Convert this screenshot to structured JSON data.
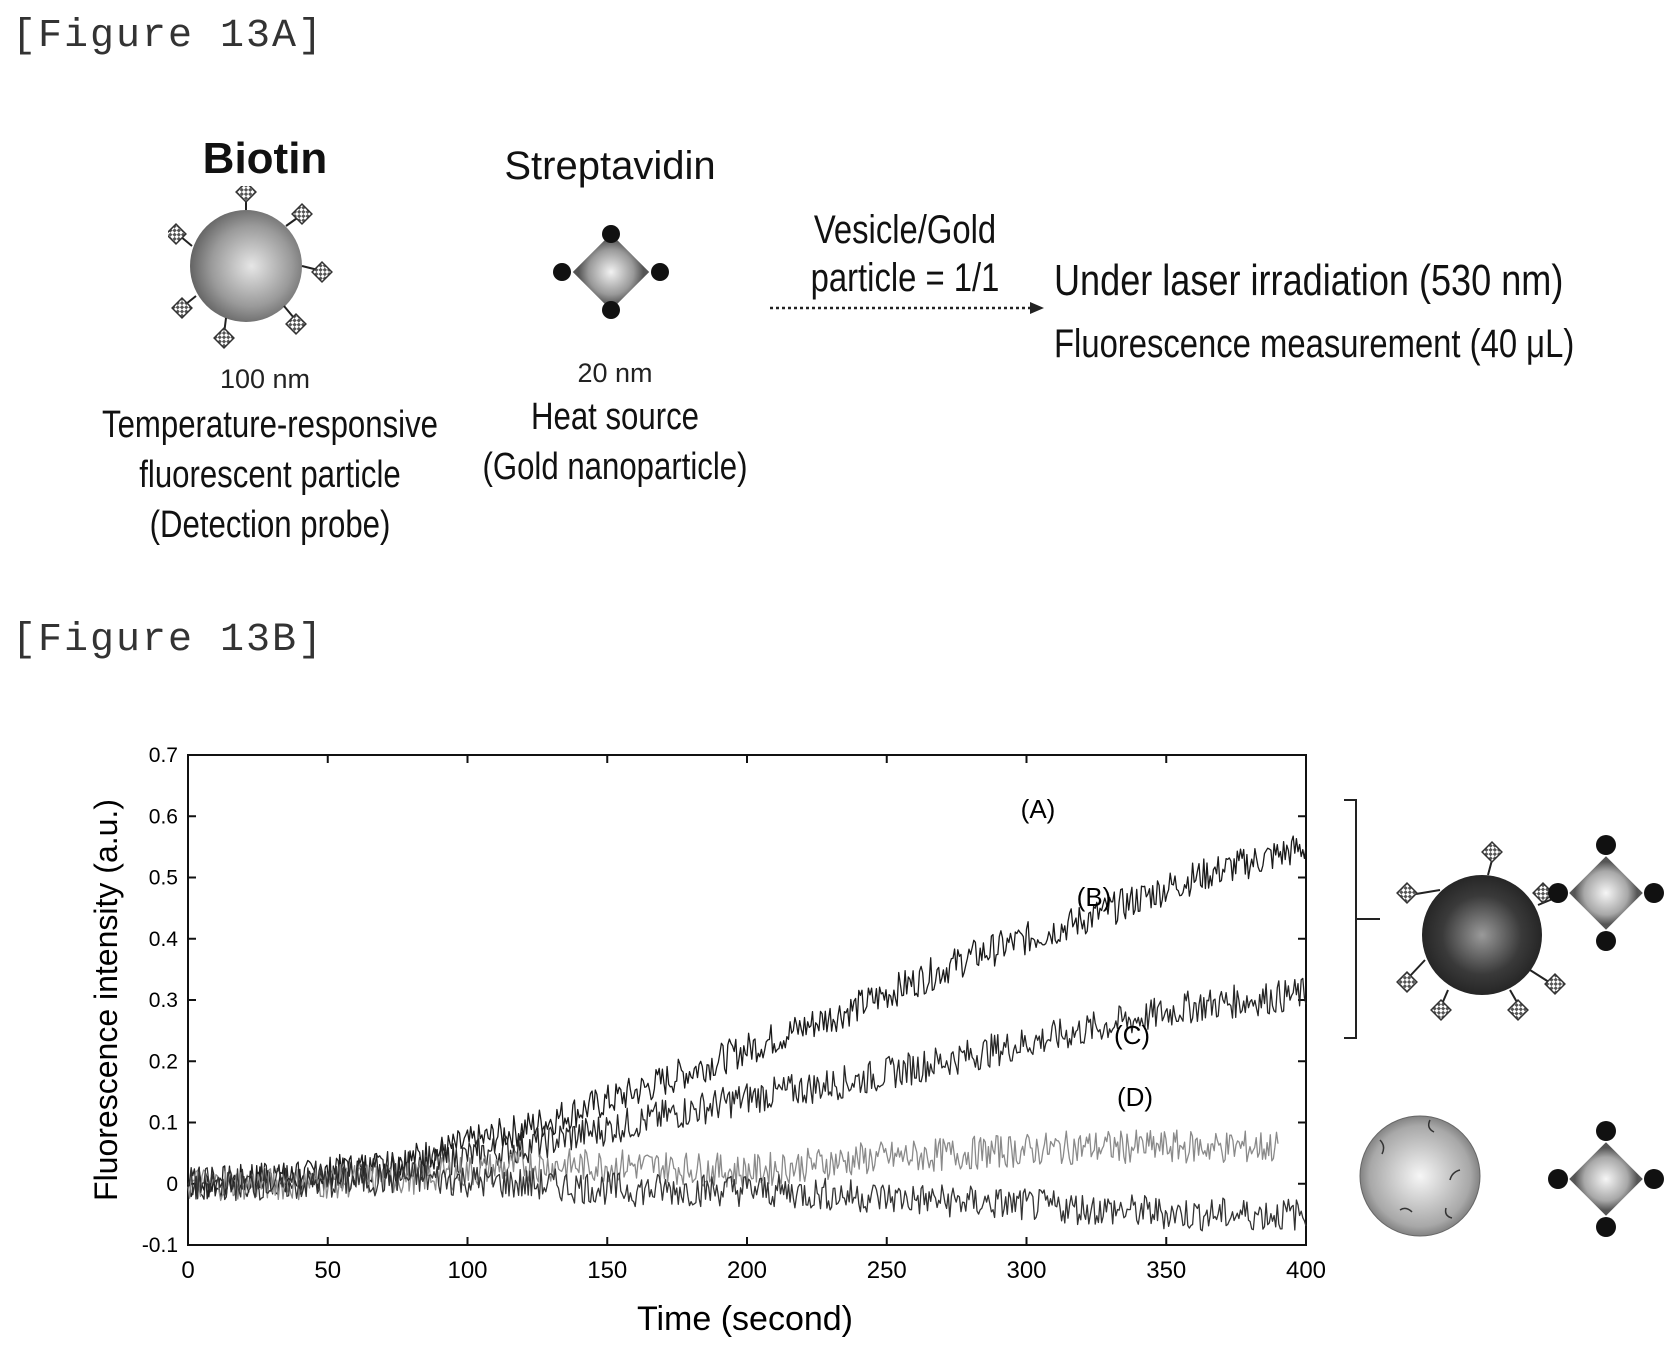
{
  "figure_a": {
    "label": "[Figure 13A]",
    "probe": {
      "ligand": "Biotin",
      "size": "100 nm",
      "desc": [
        "Temperature-responsive",
        "fluorescent particle",
        "(Detection probe)"
      ]
    },
    "heat_source": {
      "ligand": "Streptavidin",
      "size": "20 nm",
      "desc": [
        "Heat source",
        "(Gold nanoparticle)"
      ]
    },
    "ratio": [
      "Vesicle/Gold",
      "particle = 1/1"
    ],
    "conditions": [
      "Under laser irradiation (530 nm)",
      "Fluorescence measurement (40 μL)"
    ]
  },
  "figure_b": {
    "label": "[Figure 13B]"
  },
  "chart_data": {
    "type": "line",
    "xlabel": "Time (second)",
    "ylabel": "Fluorescence intensity (a.u.)",
    "xlim": [
      0,
      400
    ],
    "ylim": [
      -0.1,
      0.7
    ],
    "xticks": [
      "0",
      "50",
      "100",
      "150",
      "200",
      "250",
      "300",
      "350",
      "400"
    ],
    "yticks": [
      "-0.1",
      "0",
      "0.1",
      "0.2",
      "0.3",
      "0.4",
      "0.5",
      "0.6",
      "0.7"
    ],
    "grid": false,
    "series": [
      {
        "name": "(A)",
        "color": "#1a1a1a",
        "x": [
          0,
          40,
          80,
          120,
          160,
          200,
          240,
          280,
          320,
          360,
          400
        ],
        "y": [
          0.0,
          0.01,
          0.04,
          0.09,
          0.15,
          0.22,
          0.29,
          0.37,
          0.43,
          0.5,
          0.55
        ]
      },
      {
        "name": "(B)",
        "color": "#262626",
        "x": [
          0,
          40,
          80,
          120,
          160,
          200,
          240,
          280,
          320,
          360,
          400
        ],
        "y": [
          0.0,
          0.01,
          0.03,
          0.06,
          0.1,
          0.14,
          0.17,
          0.21,
          0.25,
          0.29,
          0.31
        ]
      },
      {
        "name": "(C)",
        "color": "#8a8a8a",
        "x": [
          0,
          40,
          80,
          120,
          160,
          200,
          240,
          280,
          320,
          360,
          390
        ],
        "y": [
          0.0,
          0.0,
          0.01,
          0.03,
          0.03,
          0.02,
          0.04,
          0.05,
          0.06,
          0.06,
          0.06
        ]
      },
      {
        "name": "(D)",
        "color": "#333333",
        "x": [
          0,
          40,
          80,
          120,
          160,
          200,
          240,
          280,
          320,
          360,
          400
        ],
        "y": [
          0.0,
          0.0,
          0.01,
          0.0,
          -0.01,
          -0.01,
          -0.02,
          -0.03,
          -0.04,
          -0.05,
          -0.05
        ]
      }
    ]
  }
}
